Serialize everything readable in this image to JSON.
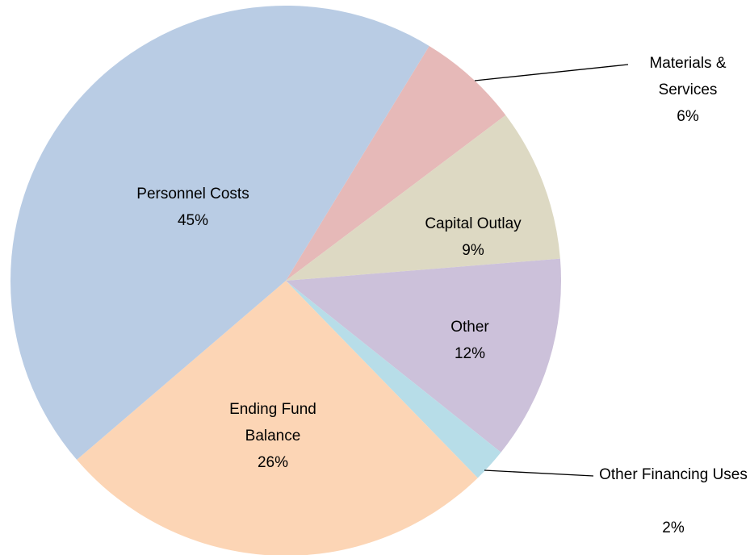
{
  "chart_data": {
    "type": "pie",
    "categories": [
      "Materials & Services",
      "Capital Outlay",
      "Other",
      "Other Financing Uses",
      "Ending Fund Balance",
      "Personnel Costs"
    ],
    "values": [
      6,
      9,
      12,
      2,
      26,
      45
    ],
    "value_labels": [
      "6%",
      "9%",
      "12%",
      "2%",
      "26%",
      "45%"
    ],
    "colors": [
      "#e6b9b8",
      "#ddd9c3",
      "#ccc1da",
      "#b7dde8",
      "#fcd5b5",
      "#b9cce4"
    ]
  }
}
